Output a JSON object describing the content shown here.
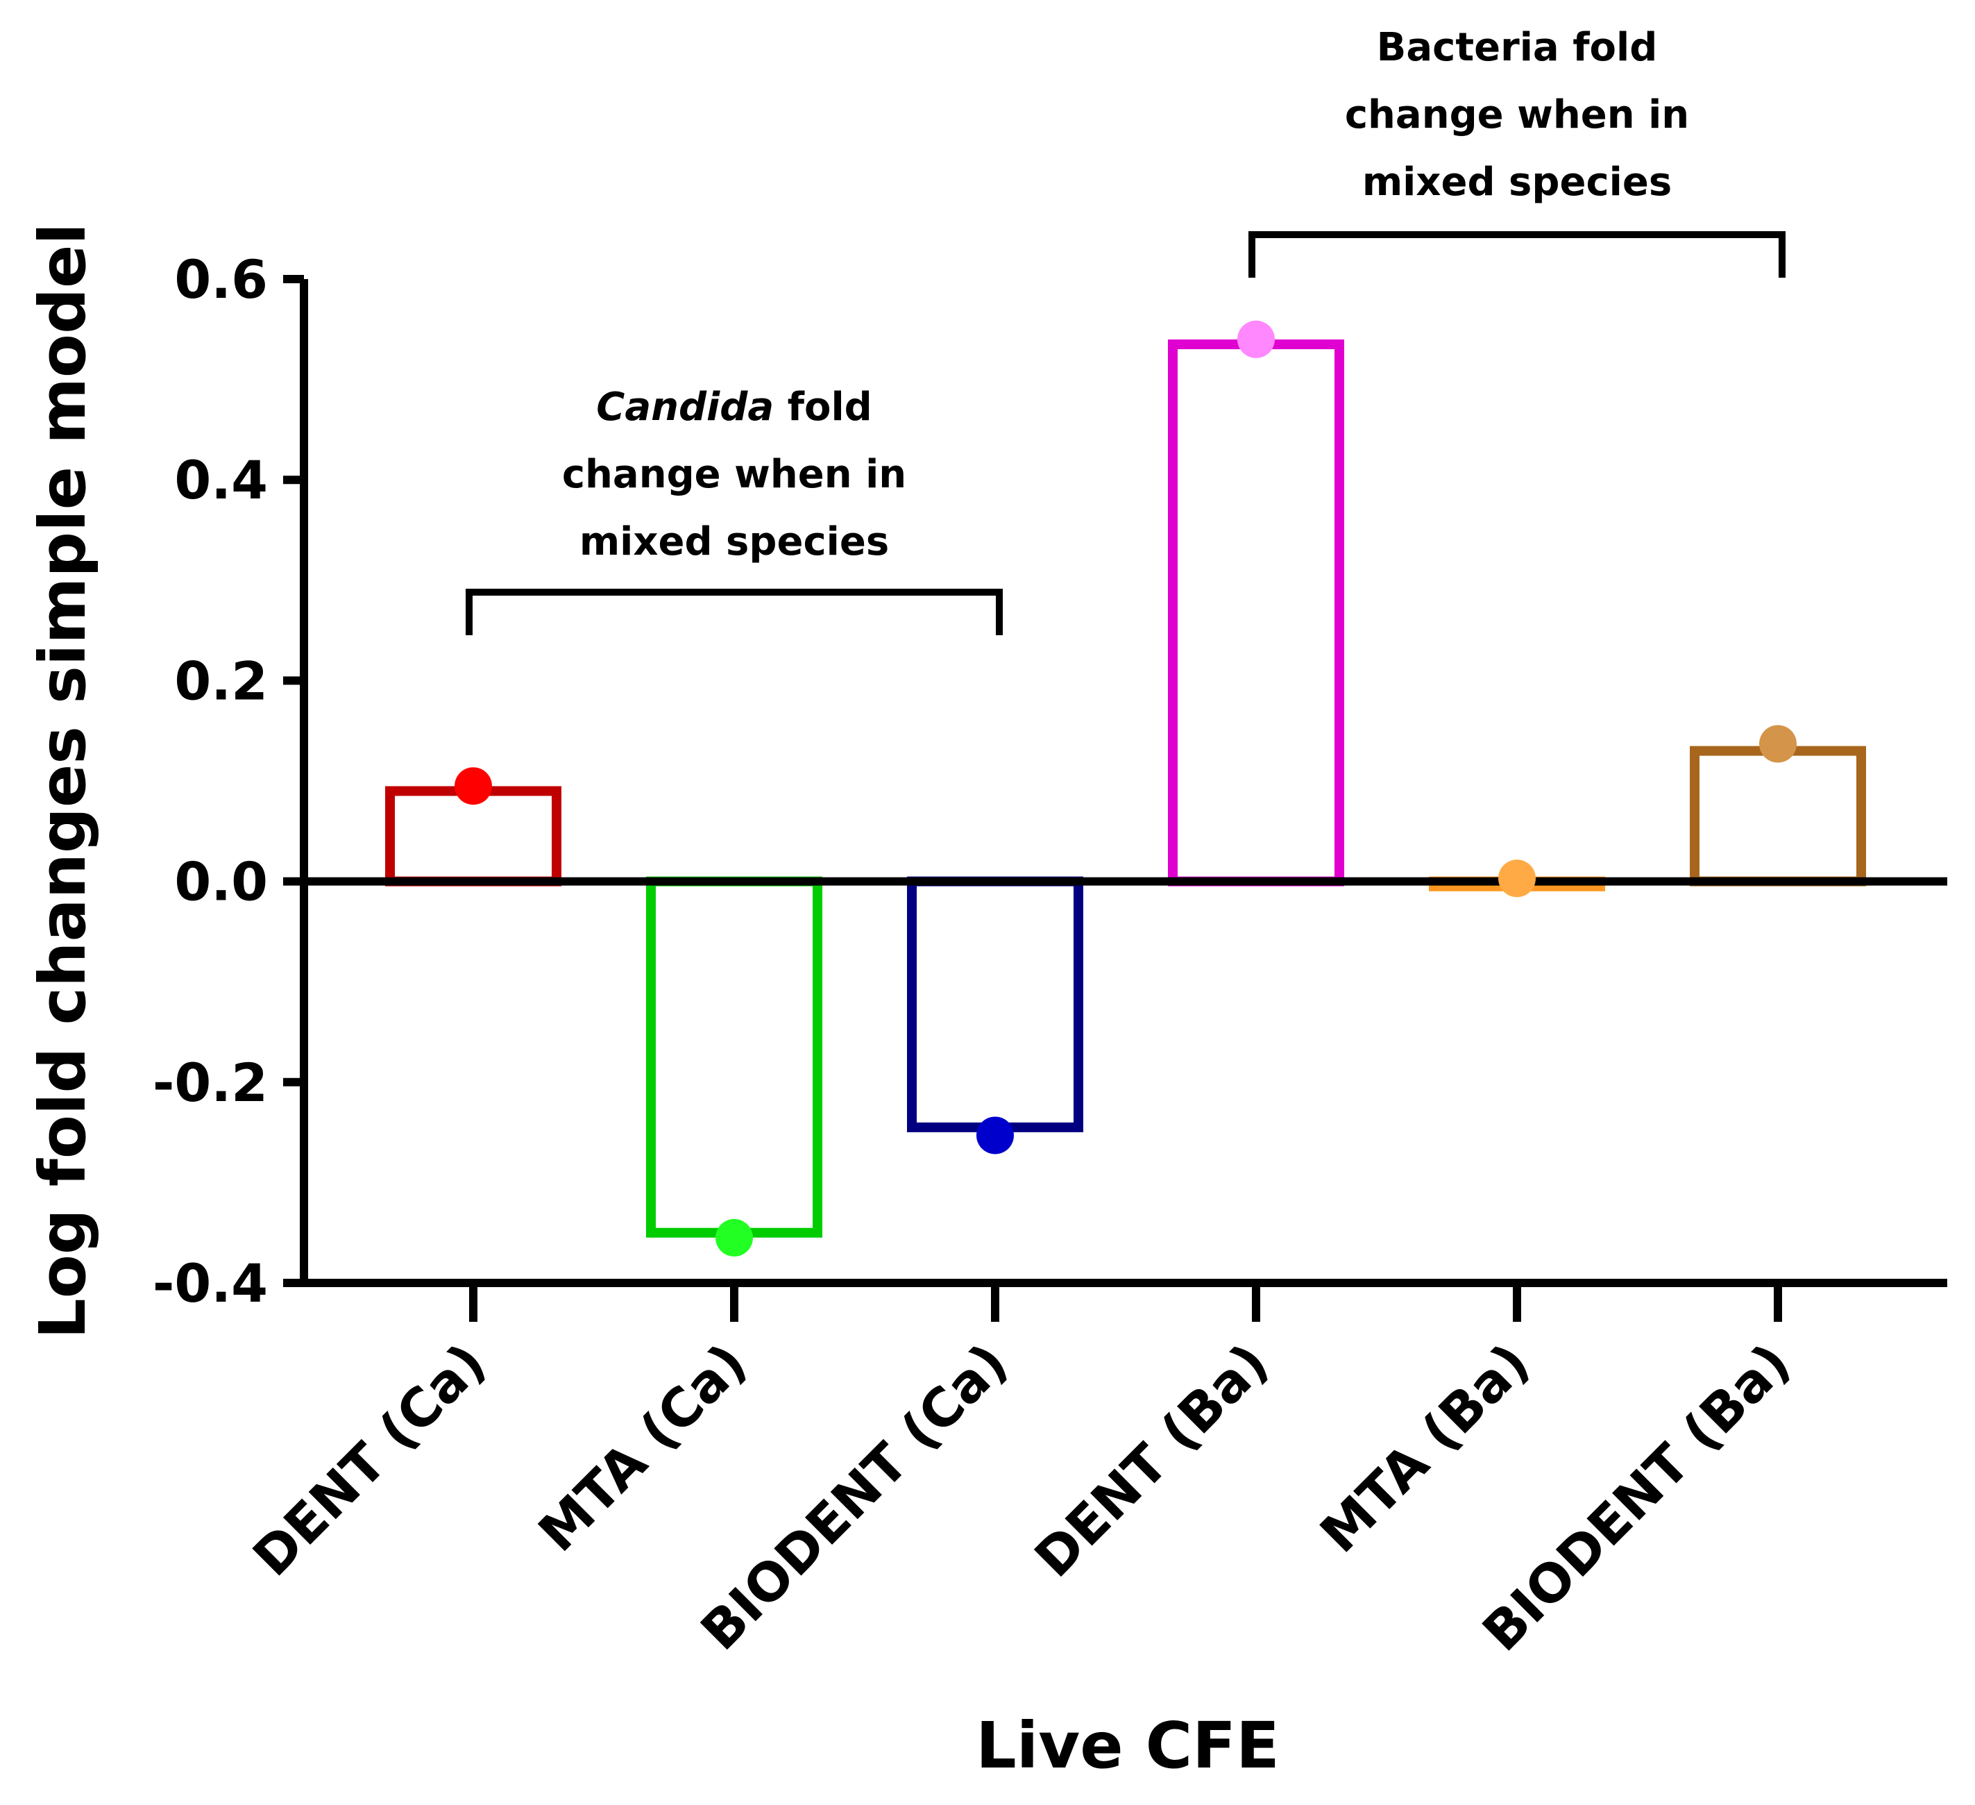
{
  "chart_data": {
    "type": "bar",
    "title": "",
    "xlabel": "Live CFE",
    "ylabel": "Log fold changes simple model",
    "ylim": [
      -0.4,
      0.6
    ],
    "yticks": [
      0.6,
      0.4,
      0.2,
      0.0,
      -0.2,
      -0.4
    ],
    "ytick_labels": [
      "0.6",
      "0.4",
      "0.2",
      "0.0",
      "-0.2",
      "-0.4"
    ],
    "categories": [
      "DENT (Ca)",
      "MTA (Ca)",
      "BIODENT (Ca)",
      "DENT (Ba)",
      "MTA (Ba)",
      "BIODENT (Ba)"
    ],
    "values": [
      0.09,
      -0.35,
      -0.245,
      0.535,
      -0.005,
      0.13
    ],
    "points": [
      0.095,
      -0.355,
      -0.253,
      0.54,
      0.003,
      0.137
    ],
    "bar_colors": [
      "#c00000",
      "#00cc00",
      "#000080",
      "#e000d0",
      "#ff9922",
      "#a8661c"
    ],
    "point_colors": [
      "#ff0000",
      "#22ff22",
      "#0000cc",
      "#ff88ff",
      "#ffaa44",
      "#d4944a"
    ],
    "annotations": [
      {
        "name": "candida",
        "lines": [
          [
            "Candida",
            " fold"
          ],
          [
            "change when in"
          ],
          [
            "mixed species"
          ]
        ],
        "italic_first": true,
        "spans": [
          0,
          2
        ]
      },
      {
        "name": "bacteria",
        "lines": [
          [
            "Bacteria fold"
          ],
          [
            "change when in"
          ],
          [
            "mixed species"
          ]
        ],
        "italic_first": false,
        "spans": [
          3,
          5
        ]
      }
    ]
  }
}
